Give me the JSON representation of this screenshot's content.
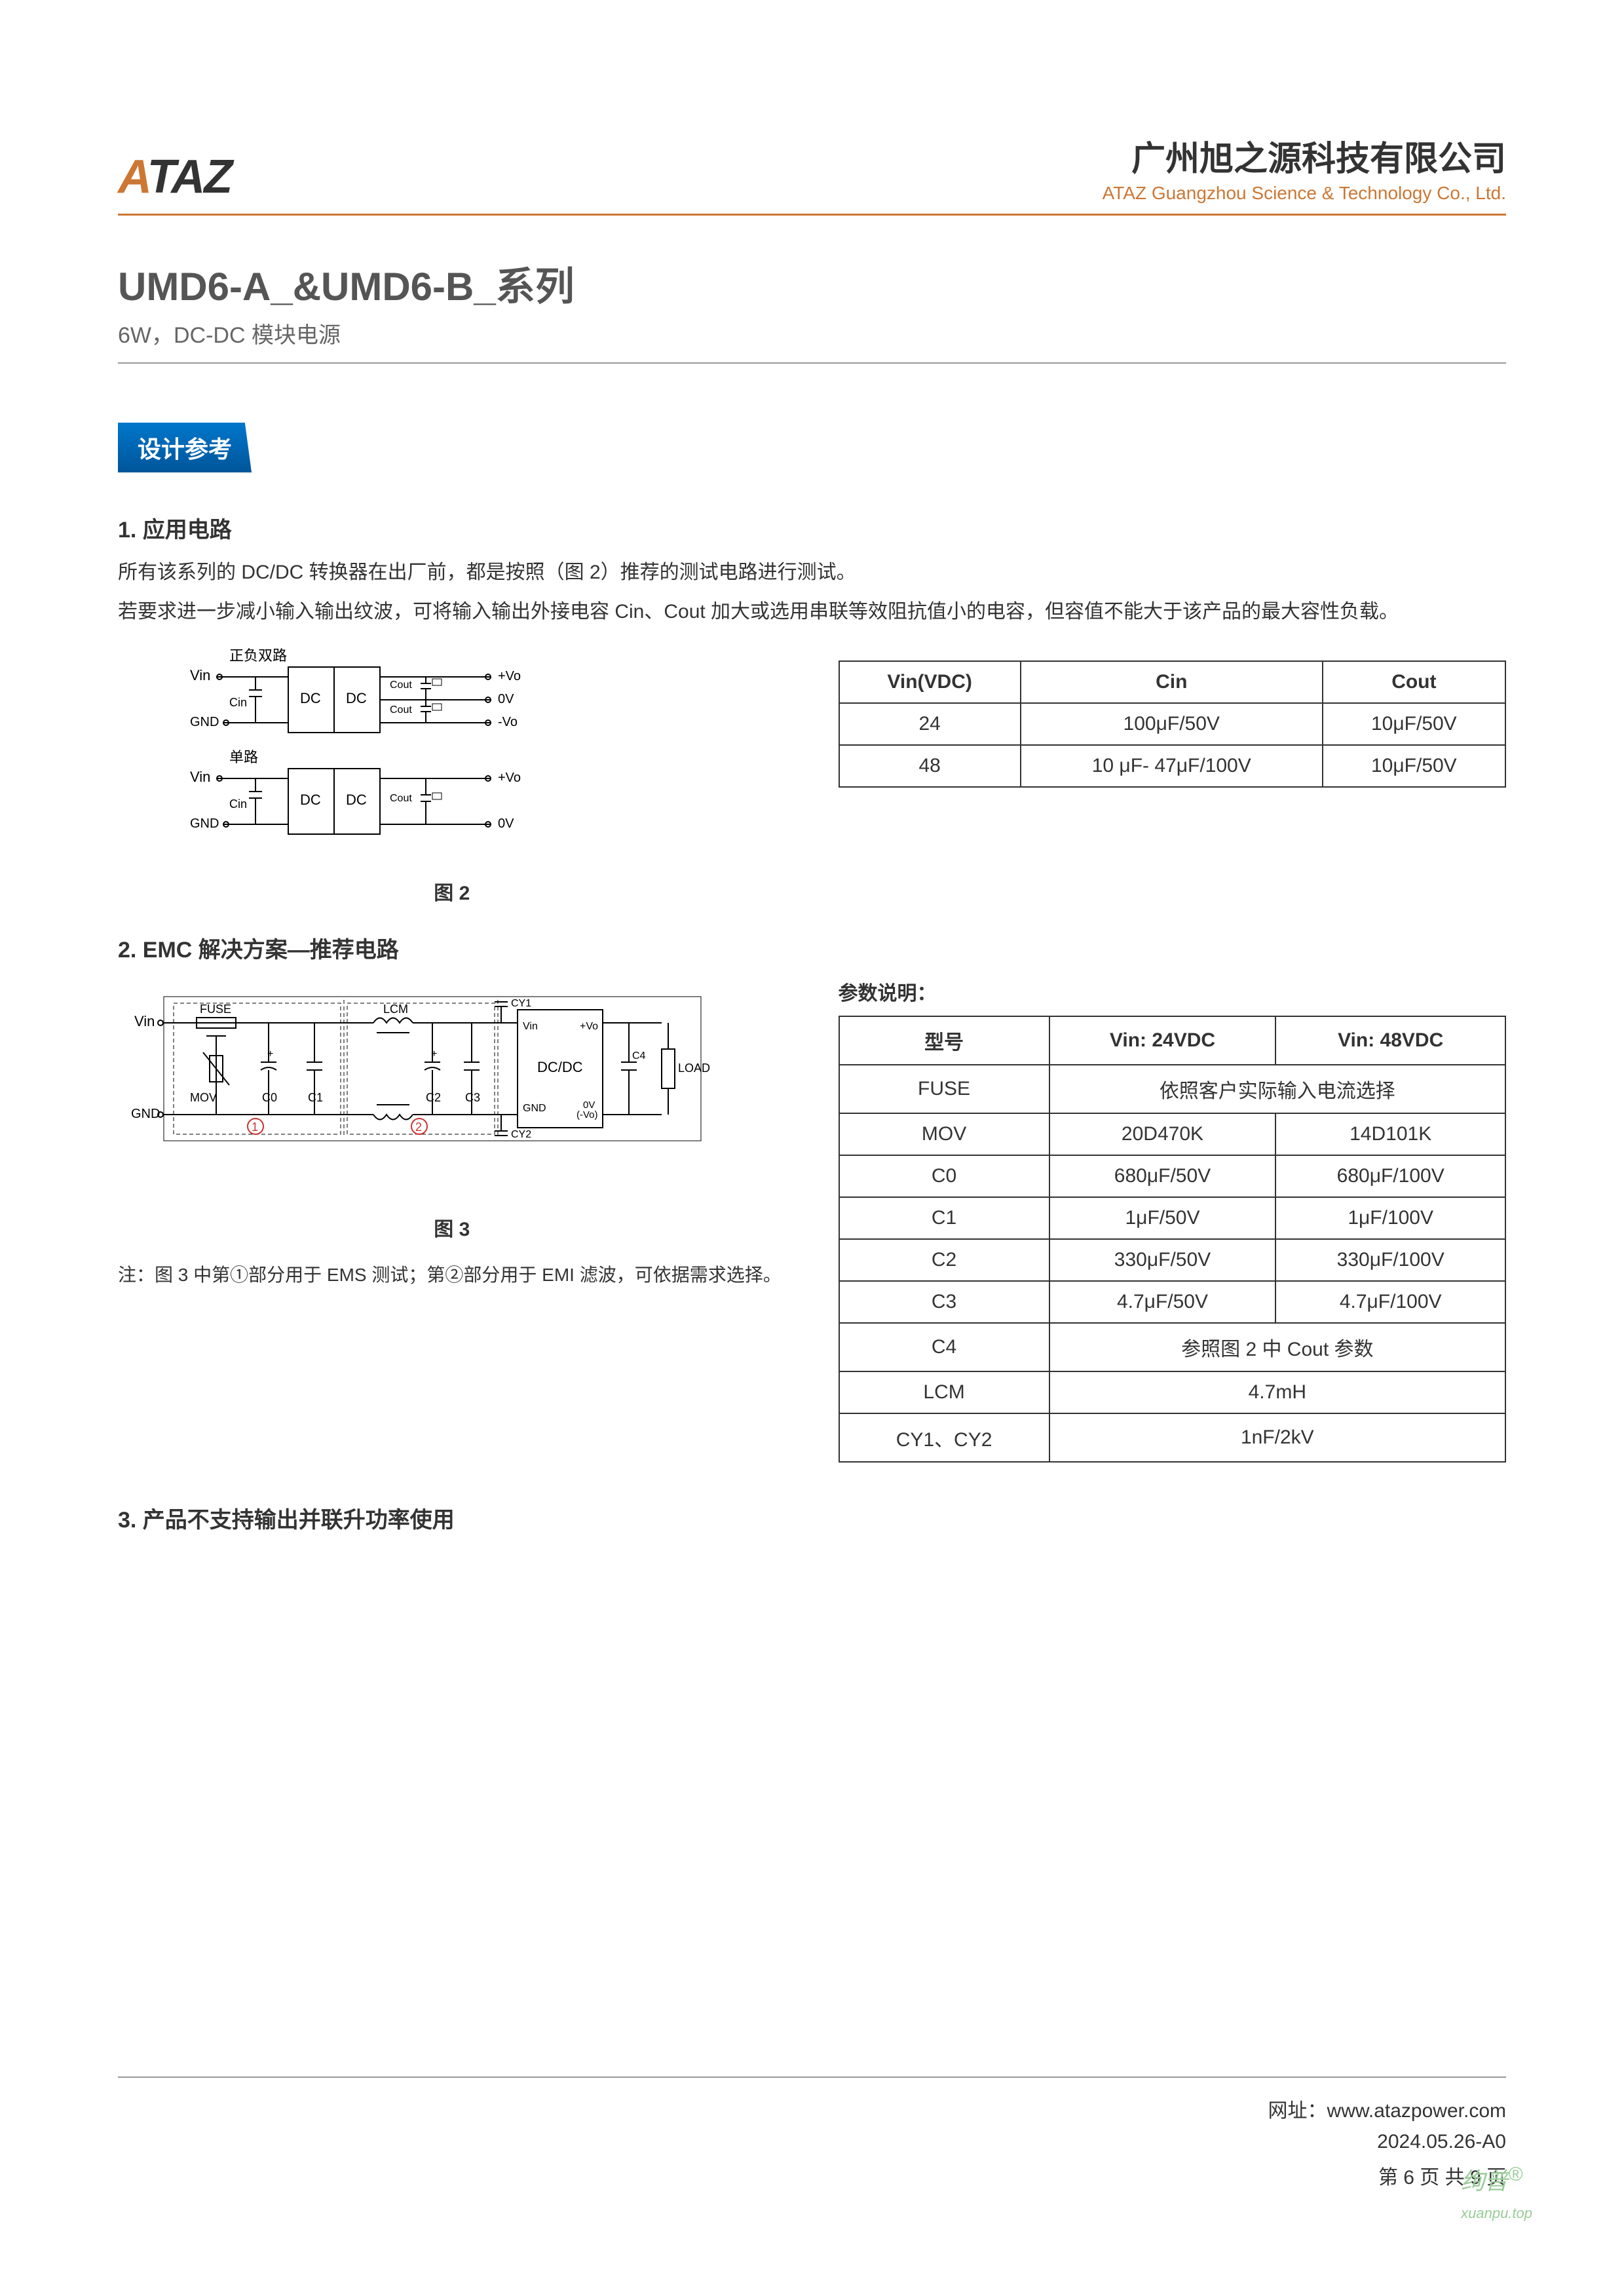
{
  "header": {
    "logo_text": "ATAZ",
    "company_cn": "广州旭之源科技有限公司",
    "company_en": "ATAZ Guangzhou Science & Technology Co., Ltd."
  },
  "title": {
    "main": "UMD6-A_&UMD6-B_系列",
    "sub": "6W，DC-DC 模块电源"
  },
  "section1": {
    "badge": "设计参考",
    "sub1_title": "1. 应用电路",
    "desc1": "所有该系列的 DC/DC 转换器在出厂前，都是按照（图 2）推荐的测试电路进行测试。",
    "desc2": "若要求进一步减小输入输出纹波，可将输入输出外接电容 Cin、Cout 加大或选用串联等效阻抗值小的电容，但容值不能大于该产品的最大容性负载。",
    "diagram2_title_top": "正负双路",
    "diagram2_title_bottom": "单路",
    "diagram2_caption": "图 2",
    "diagram2_labels": {
      "vin": "Vin",
      "gnd": "GND",
      "cin": "Cin",
      "cout": "Cout",
      "dc1": "DC",
      "dc2": "DC",
      "pvo": "+Vo",
      "zerov": "0V",
      "nvo": "-Vo"
    },
    "table1": {
      "headers": [
        "Vin(VDC)",
        "Cin",
        "Cout"
      ],
      "rows": [
        [
          "24",
          "100μF/50V",
          "10μF/50V"
        ],
        [
          "48",
          "10 μF- 47μF/100V",
          "10μF/50V"
        ]
      ]
    }
  },
  "section2": {
    "title": "2. EMC 解决方案—推荐电路",
    "diagram3_caption": "图 3",
    "diagram3_labels": {
      "vin": "Vin",
      "gnd": "GND",
      "fuse": "FUSE",
      "mov": "MOV",
      "c0": "C0",
      "c1": "C1",
      "lcm": "LCM",
      "c2": "C2",
      "c3": "C3",
      "cy1": "CY1",
      "cy2": "CY2",
      "dcdc": "DC/DC",
      "vin2": "Vin",
      "gnd2": "GND",
      "pvo": "+Vo",
      "zerov": "0V\n(-Vo)",
      "c4": "C4",
      "load": "LOAD",
      "mark1": "①",
      "mark2": "②"
    },
    "note": "注：图 3 中第①部分用于 EMS 测试；第②部分用于 EMI 滤波，可依据需求选择。",
    "param_label": "参数说明：",
    "table2": {
      "headers": [
        "型号",
        "Vin: 24VDC",
        "Vin: 48VDC"
      ],
      "rows": [
        {
          "label": "FUSE",
          "span": true,
          "value": "依照客户实际输入电流选择"
        },
        {
          "label": "MOV",
          "v1": "20D470K",
          "v2": "14D101K"
        },
        {
          "label": "C0",
          "v1": "680μF/50V",
          "v2": "680μF/100V"
        },
        {
          "label": "C1",
          "v1": "1μF/50V",
          "v2": "1μF/100V"
        },
        {
          "label": "C2",
          "v1": "330μF/50V",
          "v2": "330μF/100V"
        },
        {
          "label": "C3",
          "v1": "4.7μF/50V",
          "v2": "4.7μF/100V"
        },
        {
          "label": "C4",
          "span": true,
          "value": "参照图 2 中 Cout 参数"
        },
        {
          "label": "LCM",
          "span": true,
          "value": "4.7mH"
        },
        {
          "label": "CY1、CY2",
          "span": true,
          "value": "1nF/2kV"
        }
      ]
    }
  },
  "section3": {
    "title": "3.  产品不支持输出并联升功率使用"
  },
  "footer": {
    "website_label": "网址：",
    "website": "www.atazpower.com",
    "date": "2024.05.26-A0",
    "page": "第 6 页 共 9 页"
  },
  "watermark": {
    "main": "绚普",
    "sup": "®",
    "sub": "xuanpu.top"
  },
  "colors": {
    "accent_orange": "#cc7733",
    "badge_blue_top": "#0077cc",
    "badge_blue_bottom": "#005599",
    "text_dark": "#333333",
    "text_gray": "#666666",
    "border_gray": "#999999",
    "watermark_green": "#99cc99"
  }
}
